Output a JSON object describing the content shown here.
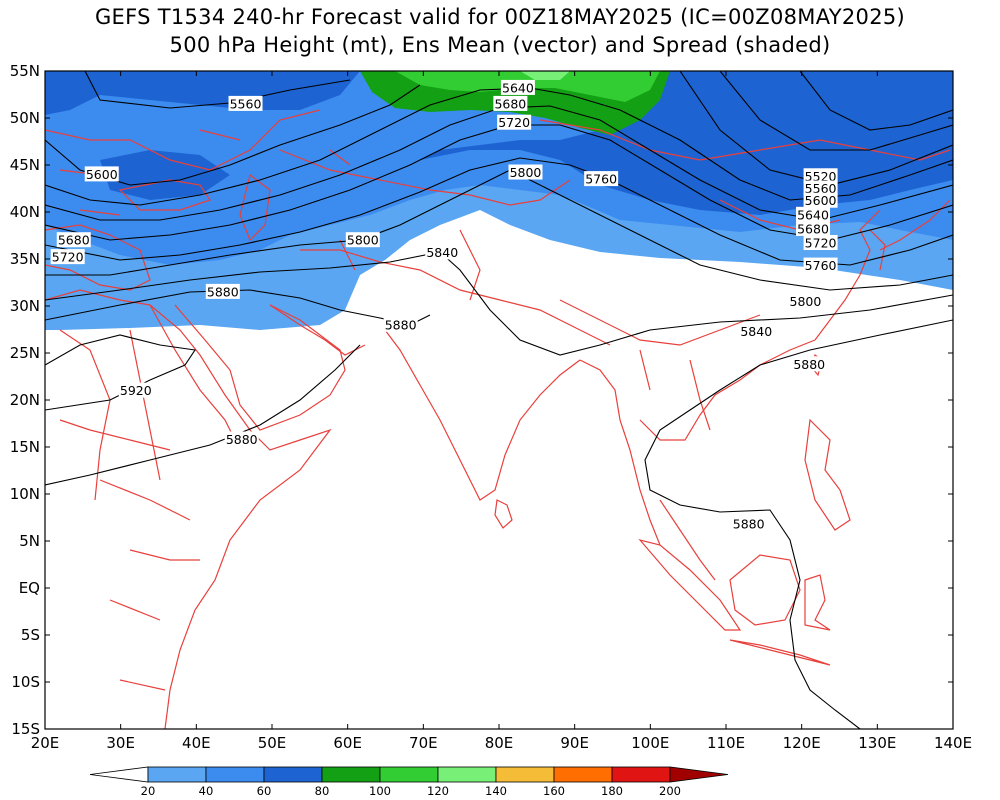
{
  "title": {
    "line1": "GEFS T1534 240-hr Forecast valid for 00Z18MAY2025 (IC=00Z08MAY2025)",
    "line2": "500 hPa Height (mt), Ens Mean (vector) and Spread (shaded)"
  },
  "map": {
    "lon_range": [
      20,
      140
    ],
    "lat_range": [
      -15,
      55
    ],
    "lon_ticks": [
      "20E",
      "30E",
      "40E",
      "50E",
      "60E",
      "70E",
      "80E",
      "90E",
      "100E",
      "110E",
      "120E",
      "130E",
      "140E"
    ],
    "lat_ticks": [
      "55N",
      "50N",
      "45N",
      "40N",
      "35N",
      "30N",
      "25N",
      "20N",
      "15N",
      "10N",
      "5N",
      "EQ",
      "5S",
      "10S",
      "15S"
    ],
    "coastline_color": "#e8403c",
    "contour_color": "#000000"
  },
  "contour_labels": [
    {
      "text": "5560",
      "lon": 46.5,
      "lat": 51.5
    },
    {
      "text": "5600",
      "lon": 27.5,
      "lat": 44.0
    },
    {
      "text": "5640",
      "lon": 82.5,
      "lat": 53.2
    },
    {
      "text": "5680",
      "lon": 81.5,
      "lat": 51.5
    },
    {
      "text": "5720",
      "lon": 82.0,
      "lat": 49.5
    },
    {
      "text": "5800",
      "lon": 83.5,
      "lat": 44.2
    },
    {
      "text": "5760",
      "lon": 93.5,
      "lat": 43.5
    },
    {
      "text": "5680",
      "lon": 23.8,
      "lat": 37.0
    },
    {
      "text": "5720",
      "lon": 23.0,
      "lat": 35.2
    },
    {
      "text": "5800",
      "lon": 62.0,
      "lat": 37.0
    },
    {
      "text": "5840",
      "lon": 72.5,
      "lat": 35.7
    },
    {
      "text": "5880",
      "lon": 43.5,
      "lat": 31.5
    },
    {
      "text": "5880",
      "lon": 67.0,
      "lat": 28.0
    },
    {
      "text": "5920",
      "lon": 32.0,
      "lat": 21.0
    },
    {
      "text": "5880",
      "lon": 46.0,
      "lat": 15.8
    },
    {
      "text": "5520",
      "lon": 122.5,
      "lat": 43.8
    },
    {
      "text": "5560",
      "lon": 122.5,
      "lat": 42.5
    },
    {
      "text": "5600",
      "lon": 122.5,
      "lat": 41.2
    },
    {
      "text": "5640",
      "lon": 121.5,
      "lat": 39.7
    },
    {
      "text": "5680",
      "lon": 121.5,
      "lat": 38.2
    },
    {
      "text": "5720",
      "lon": 122.5,
      "lat": 36.7
    },
    {
      "text": "5760",
      "lon": 122.5,
      "lat": 34.3
    },
    {
      "text": "5800",
      "lon": 120.5,
      "lat": 30.5
    },
    {
      "text": "5840",
      "lon": 114.0,
      "lat": 27.3
    },
    {
      "text": "5880",
      "lon": 121.0,
      "lat": 23.8
    },
    {
      "text": "5880",
      "lon": 113.0,
      "lat": 6.8
    }
  ],
  "colorbar": {
    "levels": [
      "20",
      "40",
      "60",
      "80",
      "100",
      "120",
      "140",
      "160",
      "180",
      "200"
    ],
    "colors": [
      "#5aa6f2",
      "#3c8cf0",
      "#1d64d2",
      "#14a014",
      "#32cd32",
      "#78f078",
      "#f5bd37",
      "#ff6e00",
      "#e11414",
      "#a00000"
    ]
  }
}
